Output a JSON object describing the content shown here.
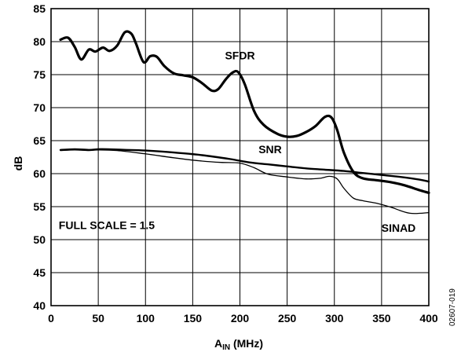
{
  "chart_data": {
    "type": "line",
    "figure_id": "02607-019",
    "xlabel_main": "A",
    "xlabel_sub": "IN",
    "xlabel_unit": " (MHz)",
    "ylabel": "dB",
    "xlim": [
      0,
      400
    ],
    "ylim": [
      40,
      85
    ],
    "grid": true,
    "x_ticks": [
      0,
      50,
      100,
      150,
      200,
      250,
      300,
      350,
      400
    ],
    "y_ticks": [
      40,
      45,
      50,
      55,
      60,
      65,
      70,
      75,
      80,
      85
    ],
    "annotations": [
      {
        "text": "SFDR",
        "x": 200,
        "y": 77.3
      },
      {
        "text": "SNR",
        "x": 232,
        "y": 63.1
      },
      {
        "text": "SINAD",
        "x": 368,
        "y": 51.2
      },
      {
        "text": "FULL SCALE = 1.5",
        "x": 59,
        "y": 51.6
      }
    ],
    "series": [
      {
        "name": "SFDR",
        "x": [
          10,
          18,
          25,
          32,
          40,
          47,
          55,
          62,
          70,
          78,
          85,
          90,
          98,
          105,
          112,
          120,
          130,
          140,
          150,
          160,
          170,
          177,
          185,
          192,
          198,
          205,
          215,
          225,
          240,
          250,
          260,
          270,
          280,
          290,
          297,
          303,
          310,
          320,
          330,
          345,
          360,
          375,
          390,
          400
        ],
        "y": [
          80.3,
          80.6,
          79.2,
          77.3,
          78.8,
          78.5,
          79.1,
          78.6,
          79.4,
          81.4,
          81.2,
          79.7,
          76.9,
          77.8,
          77.7,
          76.3,
          75.2,
          74.9,
          74.6,
          73.7,
          72.6,
          72.8,
          74.3,
          75.3,
          75.4,
          73.6,
          69.5,
          67.4,
          66.0,
          65.6,
          65.7,
          66.3,
          67.2,
          68.6,
          68.5,
          66.6,
          63.2,
          60.3,
          59.3,
          59.0,
          58.7,
          58.2,
          57.5,
          57.1
        ]
      },
      {
        "name": "SNR",
        "x": [
          10,
          25,
          40,
          50,
          60,
          80,
          100,
          130,
          160,
          190,
          210,
          230,
          250,
          270,
          290,
          310,
          330,
          350,
          370,
          390,
          400
        ],
        "y": [
          63.6,
          63.7,
          63.6,
          63.7,
          63.7,
          63.6,
          63.5,
          63.2,
          62.8,
          62.2,
          61.7,
          61.4,
          61.1,
          60.8,
          60.6,
          60.4,
          60.1,
          59.8,
          59.5,
          59.1,
          58.8
        ]
      },
      {
        "name": "SINAD",
        "x": [
          10,
          25,
          40,
          50,
          70,
          100,
          130,
          160,
          180,
          200,
          215,
          230,
          250,
          270,
          285,
          295,
          303,
          310,
          320,
          330,
          345,
          360,
          380,
          400
        ],
        "y": [
          63.5,
          63.6,
          63.5,
          63.6,
          63.5,
          63.0,
          62.4,
          61.9,
          61.7,
          61.6,
          60.9,
          59.9,
          59.5,
          59.2,
          59.3,
          59.6,
          59.2,
          57.8,
          56.3,
          55.9,
          55.5,
          54.9,
          54.0,
          54.1
        ]
      }
    ]
  }
}
